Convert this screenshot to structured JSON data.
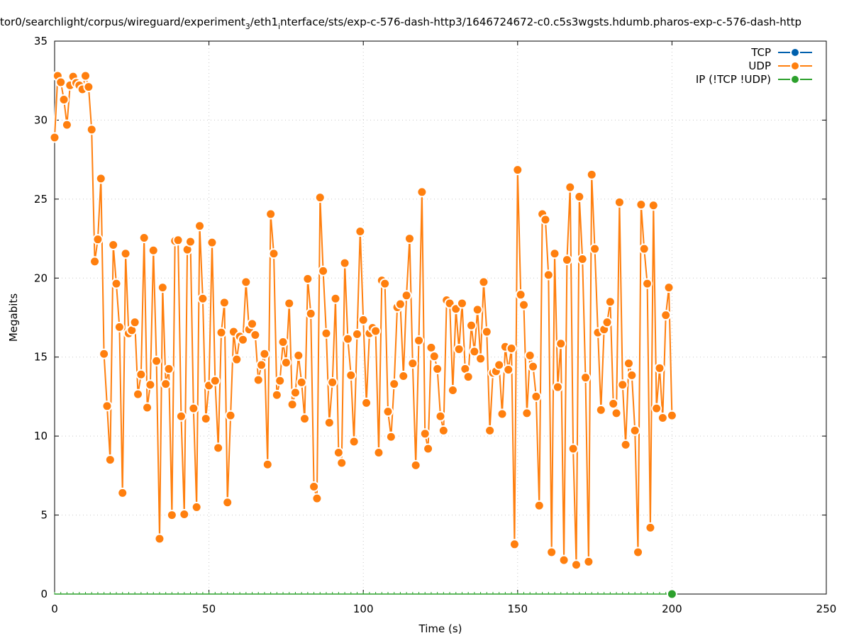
{
  "chart_data": {
    "type": "line",
    "title_parts": [
      {
        "text": "tor0/searchlight/corpus/wireguard/experiment",
        "sub": false
      },
      {
        "text": "3",
        "sub": true
      },
      {
        "text": "/eth1",
        "sub": false
      },
      {
        "text": "i",
        "sub": true
      },
      {
        "text": "nterface/sts/exp-c-576-dash-http3/1646724672-c0.c5s3wgsts.hdumb.pharos-exp-c-576-dash-http",
        "sub": false
      }
    ],
    "xlabel": "Time (s)",
    "ylabel": "Megabits",
    "xlim": [
      0,
      250
    ],
    "ylim": [
      0,
      35
    ],
    "xticks": [
      "0",
      "50",
      "100",
      "150",
      "200",
      "250"
    ],
    "yticks": [
      "0",
      "5",
      "10",
      "15",
      "20",
      "25",
      "30",
      "35"
    ],
    "grid": true,
    "legend_position": "top-right",
    "x_start": 0,
    "x_step": 1,
    "series": [
      {
        "name": "TCP",
        "color": "#0060ad",
        "values": []
      },
      {
        "name": "UDP",
        "color": "#ff7f0e",
        "values": [
          28.9,
          32.8,
          32.4,
          31.3,
          29.7,
          32.2,
          32.75,
          32.35,
          32.2,
          31.95,
          32.8,
          32.1,
          29.4,
          21.05,
          22.45,
          26.3,
          15.2,
          11.9,
          8.5,
          22.1,
          19.65,
          16.9,
          6.4,
          21.55,
          16.5,
          16.7,
          17.2,
          12.65,
          13.9,
          22.55,
          11.8,
          13.25,
          21.75,
          14.75,
          3.5,
          19.4,
          13.3,
          14.25,
          5.0,
          22.35,
          22.4,
          11.25,
          5.05,
          21.8,
          22.3,
          11.75,
          5.5,
          23.3,
          18.7,
          11.1,
          13.2,
          22.25,
          13.5,
          9.25,
          16.55,
          18.45,
          5.8,
          11.3,
          16.6,
          14.85,
          16.3,
          16.1,
          19.75,
          16.75,
          17.1,
          16.4,
          13.55,
          14.5,
          15.2,
          8.2,
          24.05,
          21.55,
          12.6,
          13.5,
          15.95,
          14.65,
          18.4,
          12.0,
          12.75,
          15.1,
          13.4,
          11.1,
          19.95,
          17.75,
          6.8,
          6.05,
          25.1,
          20.45,
          16.5,
          10.85,
          13.4,
          18.7,
          8.95,
          8.3,
          20.95,
          16.15,
          13.85,
          9.65,
          16.45,
          22.95,
          17.35,
          12.1,
          16.5,
          16.85,
          16.65,
          8.95,
          19.85,
          19.65,
          11.55,
          9.95,
          13.3,
          18.15,
          18.35,
          13.8,
          18.9,
          22.5,
          14.6,
          8.15,
          16.05,
          25.45,
          10.15,
          9.2,
          15.6,
          15.05,
          14.25,
          11.25,
          10.35,
          18.6,
          18.4,
          12.9,
          18.05,
          15.5,
          18.4,
          14.25,
          13.75,
          17.0,
          15.35,
          18.0,
          14.9,
          19.75,
          16.6,
          10.35,
          14.0,
          14.1,
          14.5,
          11.4,
          15.65,
          14.2,
          15.55,
          3.15,
          26.85,
          18.95,
          18.3,
          11.45,
          15.1,
          14.4,
          12.5,
          5.6,
          24.05,
          23.7,
          20.2,
          2.65,
          21.55,
          13.1,
          15.85,
          2.15,
          21.15,
          25.75,
          9.2,
          1.85,
          25.15,
          21.2,
          13.7,
          2.05,
          26.55,
          21.85,
          16.55,
          11.65,
          16.75,
          17.2,
          18.5,
          12.05,
          11.45,
          24.8,
          13.25,
          9.45,
          14.6,
          13.85,
          10.35,
          2.65,
          24.65,
          21.85,
          19.65,
          4.2,
          24.6,
          11.75,
          14.3,
          11.15,
          17.65,
          19.4,
          11.3
        ]
      },
      {
        "name": "IP (!TCP  !UDP)",
        "color": "#2ca02c",
        "values": [
          0
        ],
        "x": [
          200
        ]
      }
    ]
  }
}
